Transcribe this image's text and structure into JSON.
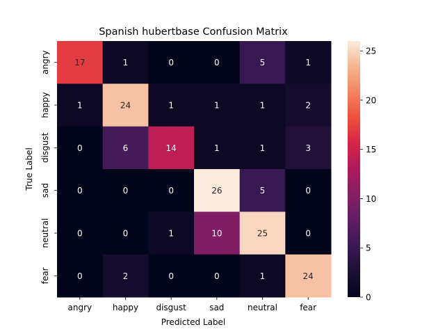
{
  "chart_data": {
    "type": "heatmap",
    "title": "Spanish hubertbase Confusion Matrix",
    "xlabel": "Predicted Label",
    "ylabel": "True Label",
    "x_categories": [
      "angry",
      "happy",
      "disgust",
      "sad",
      "neutral",
      "fear"
    ],
    "y_categories": [
      "angry",
      "happy",
      "disgust",
      "sad",
      "neutral",
      "fear"
    ],
    "values": [
      [
        17,
        1,
        0,
        0,
        5,
        1
      ],
      [
        1,
        24,
        1,
        1,
        1,
        2
      ],
      [
        0,
        6,
        14,
        1,
        1,
        3
      ],
      [
        0,
        0,
        0,
        26,
        5,
        0
      ],
      [
        0,
        0,
        1,
        10,
        25,
        0
      ],
      [
        0,
        2,
        0,
        0,
        1,
        24
      ]
    ],
    "colorbar": {
      "range": [
        0,
        26
      ],
      "ticks": [
        0,
        5,
        10,
        15,
        20,
        25
      ],
      "colormap": "rocket"
    },
    "grid": false
  }
}
